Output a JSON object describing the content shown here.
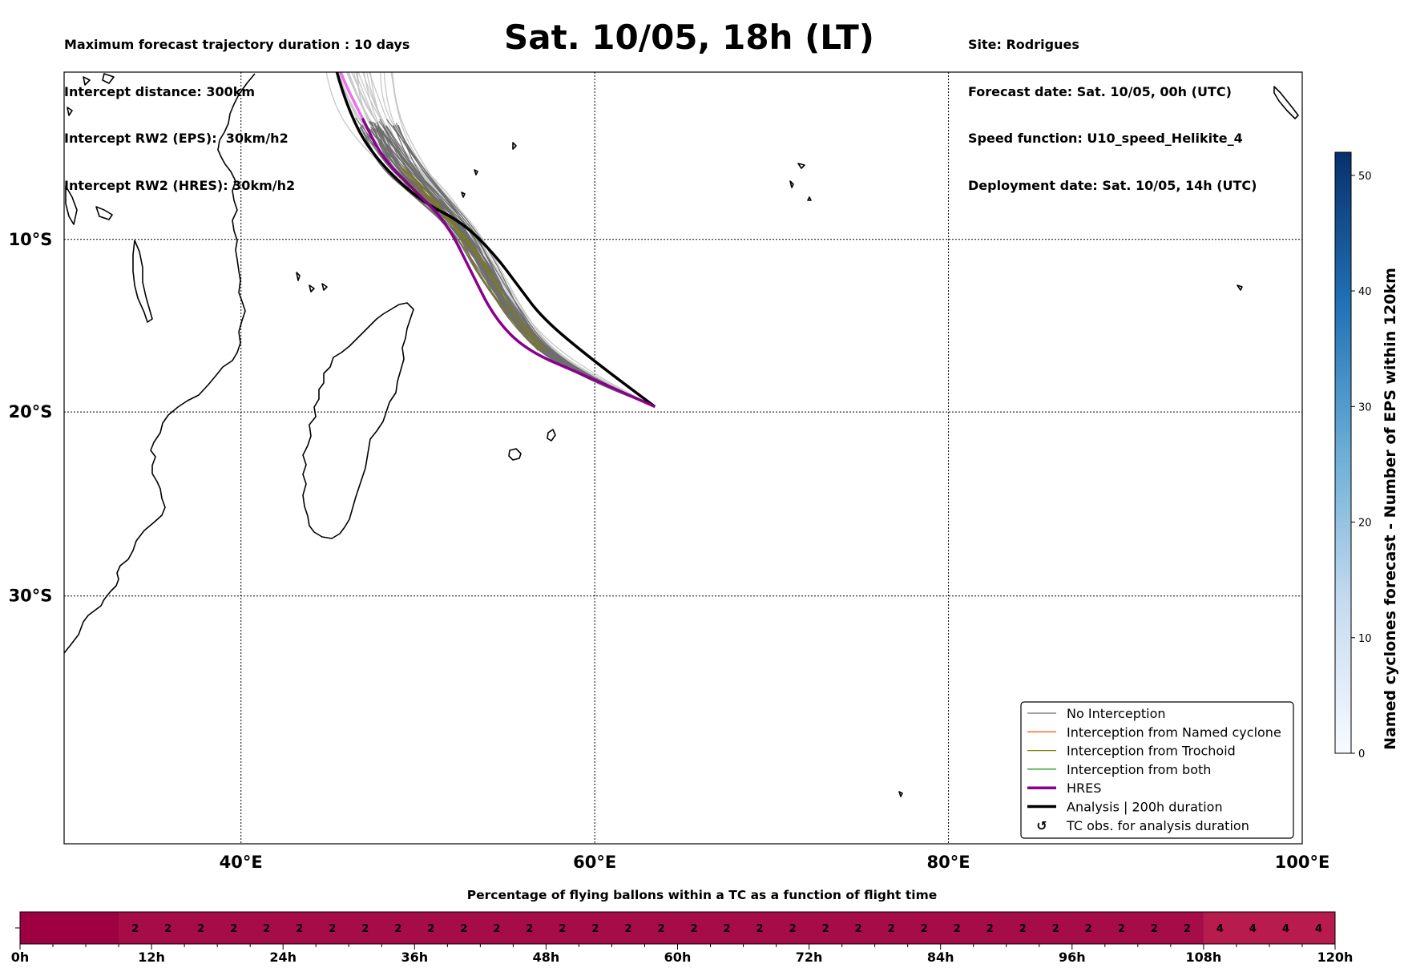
{
  "header": {
    "left_lines": [
      "Maximum forecast trajectory duration : 10 days",
      "Intercept distance: 300km",
      "Intercept RW2 (EPS):  30km/h2",
      "Intercept RW2 (HRES): 30km/h2"
    ],
    "title": "Sat. 10/05, 18h (LT)",
    "right_lines": [
      "Site: Rodrigues",
      "Forecast date: Sat. 10/05, 00h (UTC)",
      "Speed function: U10_speed_Helikite_4",
      "Deployment date: Sat. 10/05, 14h (UTC)"
    ]
  },
  "map": {
    "lon_range": [
      30,
      100
    ],
    "lat_range": [
      -42,
      0
    ],
    "x_ticks": [
      {
        "value": 40,
        "label": "40°E"
      },
      {
        "value": 60,
        "label": "60°E"
      },
      {
        "value": 80,
        "label": "80°E"
      },
      {
        "value": 100,
        "label": "100°E"
      }
    ],
    "y_ticks": [
      {
        "value": -10,
        "label": "10°S"
      },
      {
        "value": -20,
        "label": "20°S"
      },
      {
        "value": -30,
        "label": "30°S"
      }
    ],
    "launch_site": {
      "lon": 63.4,
      "lat": -19.7
    },
    "colors": {
      "no_interception": "#6e6e6e",
      "named_cyclone": "#ff5a1e",
      "trochoid": "#808000",
      "both": "#1a8f1a",
      "hres": "#8b008b",
      "analysis": "#000000",
      "faded_track": "#c8c8c8"
    }
  },
  "legend": {
    "placement": "lower-right",
    "items": [
      {
        "label": "No Interception",
        "style": "no_interception"
      },
      {
        "label": "Interception from Named cyclone",
        "style": "named_cyclone"
      },
      {
        "label": "Interception from Trochoid",
        "style": "trochoid"
      },
      {
        "label": "Interception from both",
        "style": "both"
      },
      {
        "label": "HRES",
        "style": "hres"
      },
      {
        "label": "Analysis | 200h duration",
        "style": "analysis"
      },
      {
        "label": "TC obs. for analysis duration",
        "style": "tc_symbol",
        "symbol": "↺"
      }
    ]
  },
  "colorbar": {
    "label": "Named cyclones forecast - Number of EPS within 120km",
    "min": 0,
    "max": 52,
    "ticks": [
      0,
      10,
      20,
      30,
      40,
      50
    ]
  },
  "chart_data": {
    "type": "heatmap",
    "title": "Percentage of flying ballons within a TC as a function of flight time",
    "x_unit": "h",
    "range_h": [
      0,
      120
    ],
    "tick_labels": [
      "0h",
      "12h",
      "24h",
      "36h",
      "48h",
      "60h",
      "72h",
      "84h",
      "96h",
      "108h",
      "120h"
    ],
    "cell_hours": 3,
    "cells": [
      {
        "start_h": 0,
        "end_h": 9,
        "percent": 0
      },
      {
        "start_h": 9,
        "end_h": 12,
        "percent": 2
      },
      {
        "start_h": 12,
        "end_h": 15,
        "percent": 2
      },
      {
        "start_h": 15,
        "end_h": 18,
        "percent": 2
      },
      {
        "start_h": 18,
        "end_h": 21,
        "percent": 2
      },
      {
        "start_h": 21,
        "end_h": 24,
        "percent": 2
      },
      {
        "start_h": 24,
        "end_h": 27,
        "percent": 2
      },
      {
        "start_h": 27,
        "end_h": 30,
        "percent": 2
      },
      {
        "start_h": 30,
        "end_h": 33,
        "percent": 2
      },
      {
        "start_h": 33,
        "end_h": 36,
        "percent": 2
      },
      {
        "start_h": 36,
        "end_h": 39,
        "percent": 2
      },
      {
        "start_h": 39,
        "end_h": 42,
        "percent": 2
      },
      {
        "start_h": 42,
        "end_h": 45,
        "percent": 2
      },
      {
        "start_h": 45,
        "end_h": 48,
        "percent": 2
      },
      {
        "start_h": 48,
        "end_h": 51,
        "percent": 2
      },
      {
        "start_h": 51,
        "end_h": 54,
        "percent": 2
      },
      {
        "start_h": 54,
        "end_h": 57,
        "percent": 2
      },
      {
        "start_h": 57,
        "end_h": 60,
        "percent": 2
      },
      {
        "start_h": 60,
        "end_h": 63,
        "percent": 2
      },
      {
        "start_h": 63,
        "end_h": 66,
        "percent": 2
      },
      {
        "start_h": 66,
        "end_h": 69,
        "percent": 2
      },
      {
        "start_h": 69,
        "end_h": 72,
        "percent": 2
      },
      {
        "start_h": 72,
        "end_h": 75,
        "percent": 2
      },
      {
        "start_h": 75,
        "end_h": 78,
        "percent": 2
      },
      {
        "start_h": 78,
        "end_h": 81,
        "percent": 2
      },
      {
        "start_h": 81,
        "end_h": 84,
        "percent": 2
      },
      {
        "start_h": 84,
        "end_h": 87,
        "percent": 2
      },
      {
        "start_h": 87,
        "end_h": 90,
        "percent": 2
      },
      {
        "start_h": 90,
        "end_h": 93,
        "percent": 2
      },
      {
        "start_h": 93,
        "end_h": 96,
        "percent": 2
      },
      {
        "start_h": 96,
        "end_h": 99,
        "percent": 2
      },
      {
        "start_h": 99,
        "end_h": 102,
        "percent": 2
      },
      {
        "start_h": 102,
        "end_h": 105,
        "percent": 2
      },
      {
        "start_h": 105,
        "end_h": 108,
        "percent": 2
      },
      {
        "start_h": 108,
        "end_h": 111,
        "percent": 4
      },
      {
        "start_h": 111,
        "end_h": 114,
        "percent": 4
      },
      {
        "start_h": 114,
        "end_h": 117,
        "percent": 4
      },
      {
        "start_h": 117,
        "end_h": 120,
        "percent": 4
      }
    ],
    "colors": {
      "0": "#9e0142",
      "2": "#a60c47",
      "4": "#b81b4d"
    }
  }
}
